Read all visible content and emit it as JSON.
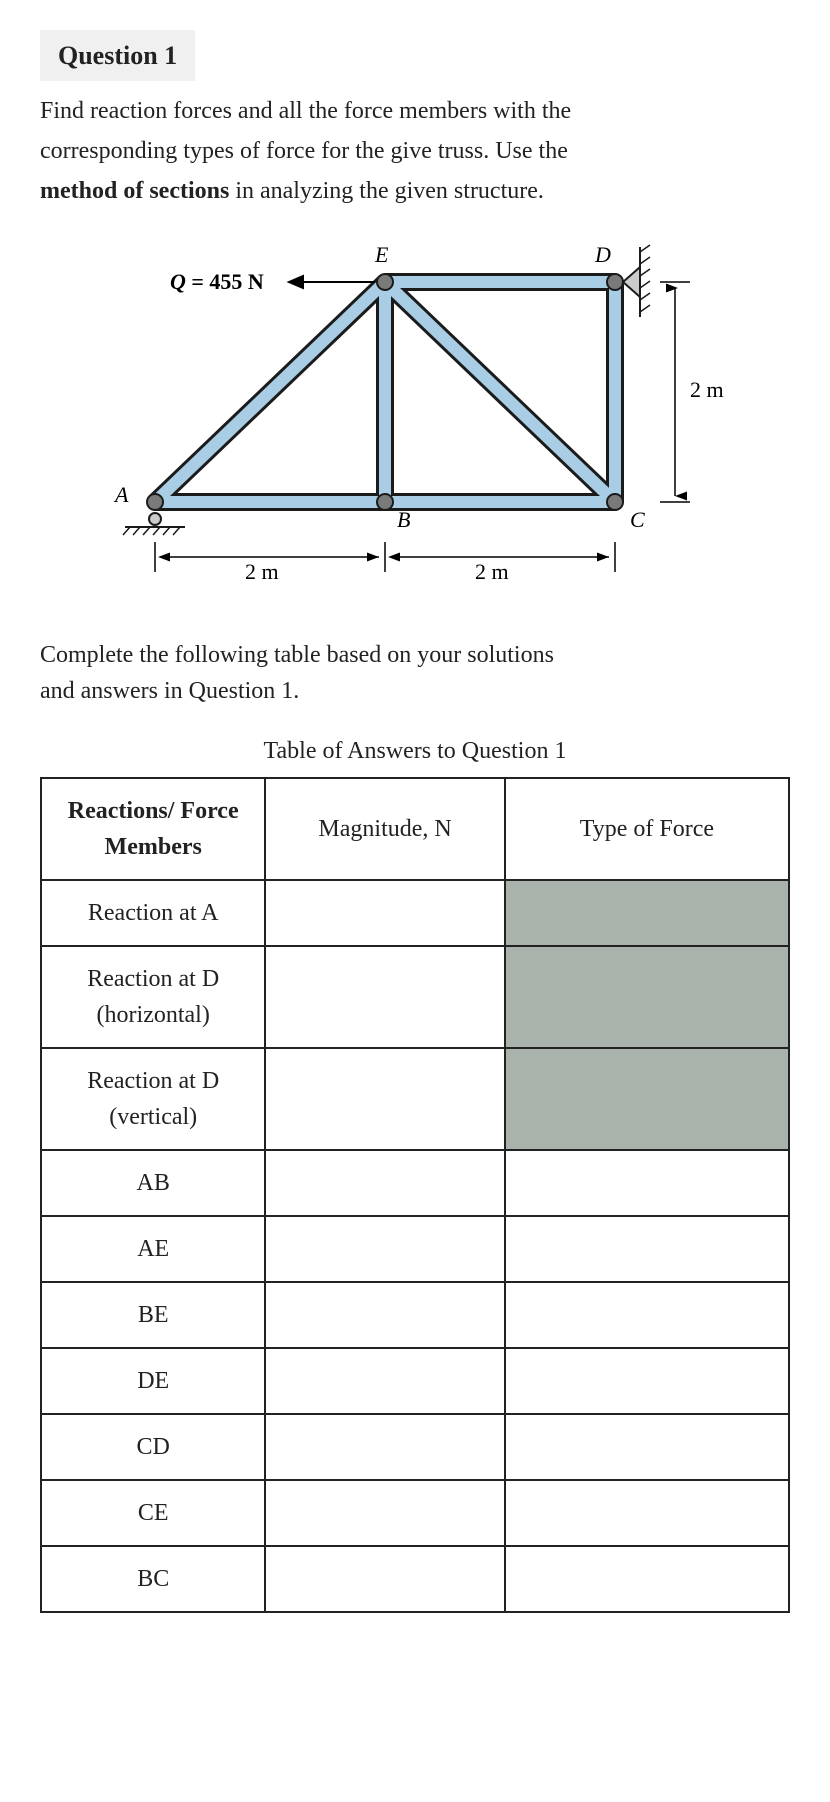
{
  "question": {
    "tag": "Question 1",
    "line1": "Find reaction forces and all the force members with the",
    "line2_a": "corresponding types of force for the give truss. Use the",
    "line3_a": "method of sections",
    "line3_b": " in analyzing the given structure."
  },
  "diagram": {
    "Q_label": "Q = 455 N",
    "A": "A",
    "B": "B",
    "C": "C",
    "D": "D",
    "E": "E",
    "span_left": "2 m",
    "span_right": "2 m",
    "height": "2 m",
    "truss_fill": "#a8cde4",
    "truss_stroke": "#1b1b1b",
    "joint_fill": "#7a7a7a"
  },
  "followup": {
    "line1": "Complete the following table based on your solutions",
    "line2": "and answers in Question 1."
  },
  "table": {
    "title": "Table of Answers to Question 1",
    "head_members_l1": "Reactions/ Force",
    "head_members_l2": "Members",
    "head_mag": "Magnitude, N",
    "head_type": "Type of Force",
    "rows": [
      {
        "label": "Reaction at A",
        "shaded": true,
        "multiline": false
      },
      {
        "label": "Reaction at D",
        "sub": "(horizontal)",
        "shaded": true,
        "multiline": true
      },
      {
        "label": "Reaction at D",
        "sub": "(vertical)",
        "shaded": true,
        "multiline": true
      },
      {
        "label": "AB",
        "shaded": false
      },
      {
        "label": "AE",
        "shaded": false
      },
      {
        "label": "BE",
        "shaded": false
      },
      {
        "label": "DE",
        "shaded": false
      },
      {
        "label": "CD",
        "shaded": false
      },
      {
        "label": "CE",
        "shaded": false
      },
      {
        "label": "BC",
        "shaded": false
      }
    ]
  }
}
